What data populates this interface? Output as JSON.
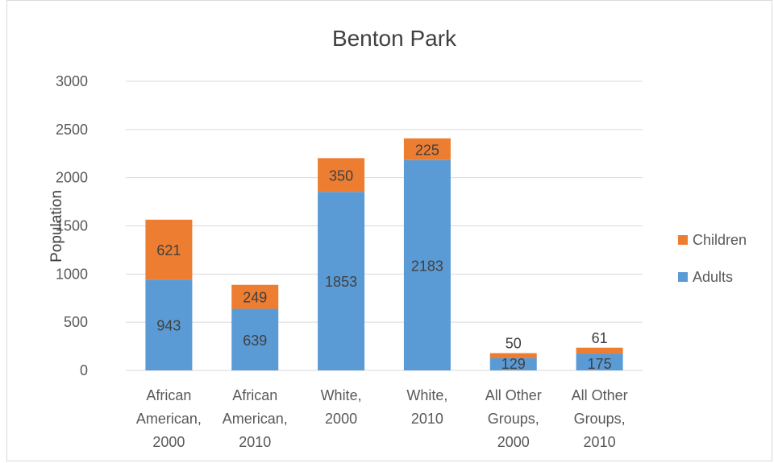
{
  "chart_data": {
    "type": "bar",
    "stacked": true,
    "title": "Benton Park",
    "ylabel": "Population",
    "xlabel": "",
    "ylim": [
      0,
      3000
    ],
    "yticks": [
      0,
      500,
      1000,
      1500,
      2000,
      2500,
      3000
    ],
    "grid": true,
    "legend_position": "right",
    "categories": [
      [
        "African",
        "American,",
        "2000"
      ],
      [
        "African",
        "American,",
        "2010"
      ],
      [
        "White,",
        "2000"
      ],
      [
        "White,",
        "2010"
      ],
      [
        "All Other",
        "Groups,",
        "2000"
      ],
      [
        "All Other",
        "Groups,",
        "2010"
      ]
    ],
    "series": [
      {
        "name": "Adults",
        "color": "#5b9bd5",
        "values": [
          943,
          639,
          1853,
          2183,
          129,
          175
        ]
      },
      {
        "name": "Children",
        "color": "#ed7d31",
        "values": [
          621,
          249,
          350,
          225,
          50,
          61
        ]
      }
    ]
  }
}
